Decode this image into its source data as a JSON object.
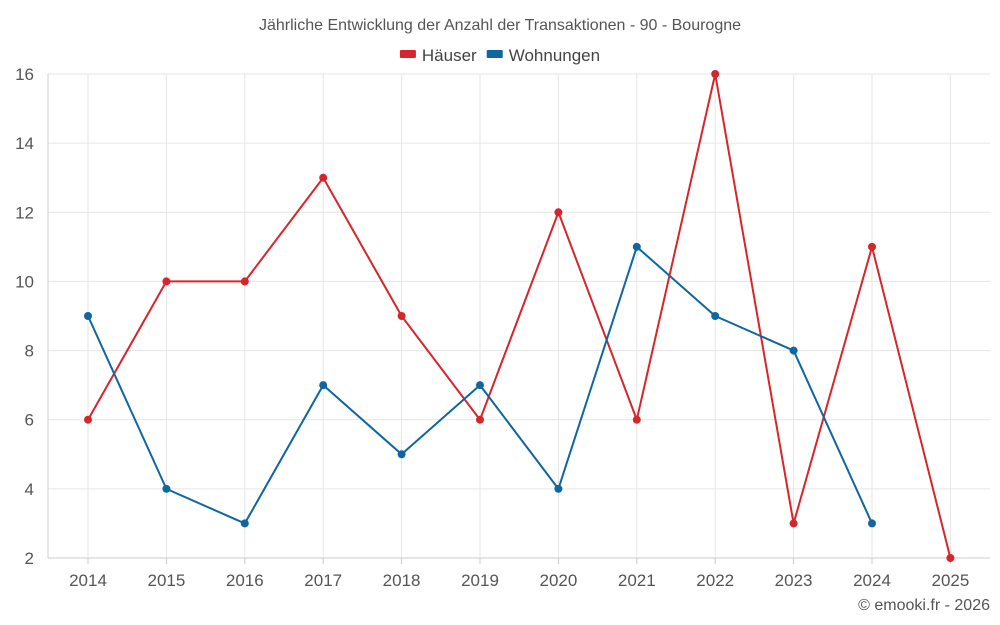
{
  "chart_data": {
    "type": "line",
    "title": "Jährliche Entwicklung der Anzahl der Transaktionen - 90 - Bourogne",
    "categories": [
      "2014",
      "2015",
      "2016",
      "2017",
      "2018",
      "2019",
      "2020",
      "2021",
      "2022",
      "2023",
      "2024",
      "2025"
    ],
    "ylim": [
      2,
      16
    ],
    "yticks": [
      2,
      4,
      6,
      8,
      10,
      12,
      14,
      16
    ],
    "grid": true,
    "legend_position": "top-center",
    "series": [
      {
        "name": "Häuser",
        "color": "#d7262b",
        "values": [
          6,
          10,
          10,
          13,
          9,
          6,
          12,
          6,
          16,
          3,
          11,
          2
        ]
      },
      {
        "name": "Wohnungen",
        "color": "#0f66a0",
        "values": [
          9,
          4,
          3,
          7,
          5,
          7,
          4,
          11,
          9,
          8,
          3,
          null
        ]
      }
    ]
  },
  "credit": "© emooki.fr - 2026"
}
